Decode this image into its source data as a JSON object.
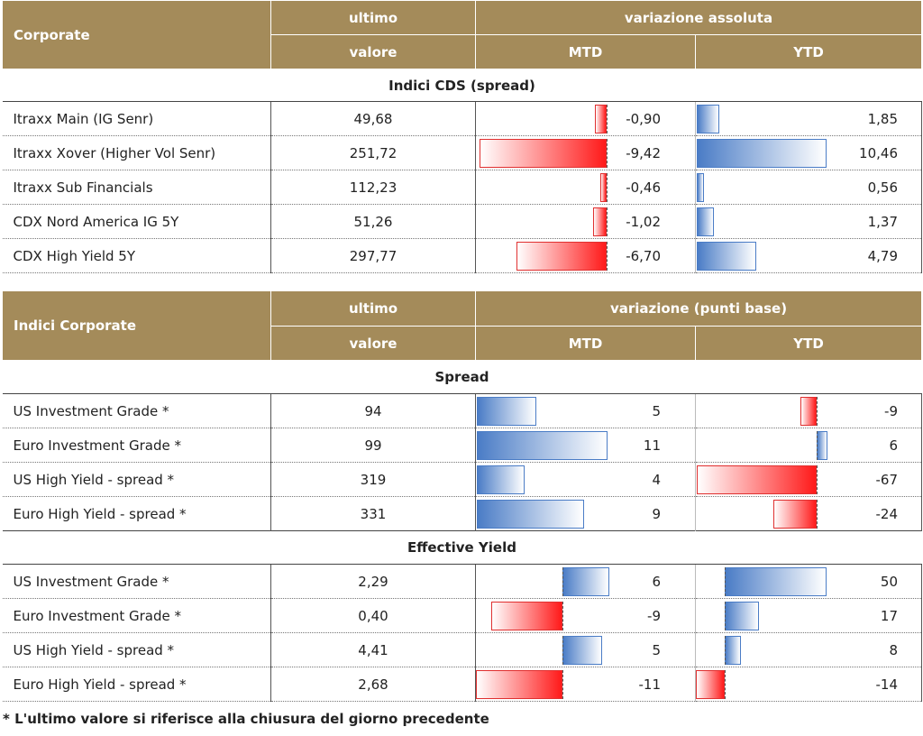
{
  "table1": {
    "header_label": "Corporate",
    "col_ultimo_1": "ultimo",
    "col_ultimo_2": "valore",
    "col_variazione": "variazione assoluta",
    "col_mtd": "MTD",
    "col_ytd": "YTD",
    "section": "Indici CDS (spread)",
    "rows": [
      {
        "name": "Itraxx Main (IG Senr)",
        "value": "49,68",
        "mtd": "-0,90",
        "ytd": "1,85",
        "mtd_num": -0.9,
        "ytd_num": 1.85
      },
      {
        "name": "Itraxx Xover (Higher Vol Senr)",
        "value": "251,72",
        "mtd": "-9,42",
        "ytd": "10,46",
        "mtd_num": -9.42,
        "ytd_num": 10.46
      },
      {
        "name": "Itraxx Sub Financials",
        "value": "112,23",
        "mtd": "-0,46",
        "ytd": "0,56",
        "mtd_num": -0.46,
        "ytd_num": 0.56
      },
      {
        "name": "CDX Nord America IG 5Y",
        "value": "51,26",
        "mtd": "-1,02",
        "ytd": "1,37",
        "mtd_num": -1.02,
        "ytd_num": 1.37
      },
      {
        "name": "CDX High Yield 5Y",
        "value": "297,77",
        "mtd": "-6,70",
        "ytd": "4,79",
        "mtd_num": -6.7,
        "ytd_num": 4.79
      }
    ]
  },
  "table2": {
    "header_label": "Indici Corporate",
    "col_ultimo_1": "ultimo",
    "col_ultimo_2": "valore",
    "col_variazione": "variazione (punti base)",
    "col_mtd": "MTD",
    "col_ytd": "YTD",
    "section_spread": "Spread",
    "spread_rows": [
      {
        "name": "US Investment Grade *",
        "value": "94",
        "mtd": "5",
        "ytd": "-9",
        "mtd_num": 5,
        "ytd_num": -9
      },
      {
        "name": "Euro Investment Grade *",
        "value": "99",
        "mtd": "11",
        "ytd": "6",
        "mtd_num": 11,
        "ytd_num": 6
      },
      {
        "name": "US High Yield  - spread *",
        "value": "319",
        "mtd": "4",
        "ytd": "-67",
        "mtd_num": 4,
        "ytd_num": -67
      },
      {
        "name": "Euro High Yield  - spread *",
        "value": "331",
        "mtd": "9",
        "ytd": "-24",
        "mtd_num": 9,
        "ytd_num": -24
      }
    ],
    "section_yield": "Effective Yield",
    "yield_rows": [
      {
        "name": "US Investment Grade *",
        "value": "2,29",
        "mtd": "6",
        "ytd": "50",
        "mtd_num": 6,
        "ytd_num": 50
      },
      {
        "name": "Euro Investment Grade *",
        "value": "0,40",
        "mtd": "-9",
        "ytd": "17",
        "mtd_num": -9,
        "ytd_num": 17
      },
      {
        "name": "US High Yield  - spread *",
        "value": "4,41",
        "mtd": "5",
        "ytd": "8",
        "mtd_num": 5,
        "ytd_num": 8
      },
      {
        "name": "Euro High Yield  - spread *",
        "value": "2,68",
        "mtd": "-11",
        "ytd": "-14",
        "mtd_num": -11,
        "ytd_num": -14
      }
    ]
  },
  "footnote": "* L'ultimo valore si riferisce alla chiusura del giorno precedente",
  "colors": {
    "header_bg": "#a48b5a",
    "negative": "#ff1a1a",
    "positive": "#4a7cc6"
  }
}
